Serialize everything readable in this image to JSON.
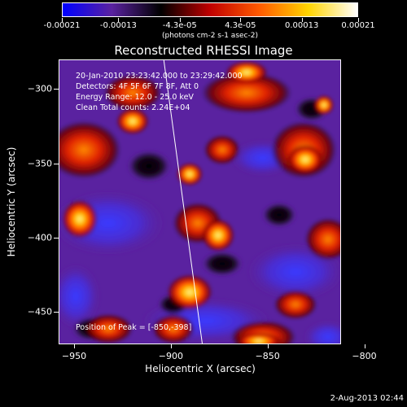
{
  "colorbar": {
    "tick_labels": [
      "-0.00021",
      "-0.00013",
      "-4.3e-05",
      "4.3e-05",
      "0.00013",
      "0.00021"
    ],
    "units": "(photons cm-2 s-1 asec-2)",
    "range": [
      -0.00021,
      0.00021
    ],
    "colors": [
      "#0000ff",
      "#5a22a0",
      "#000000",
      "#c00000",
      "#ff5a00",
      "#ffd400",
      "#ffffff"
    ]
  },
  "image": {
    "title": "Reconstructed RHESSI Image",
    "info_lines": [
      "20-Jan-2010 23:23:42.000 to 23:29:42.000",
      "Detectors: 4F 5F 6F 7F 8F, Att 0",
      "Energy Range: 12.0 - 25.0 keV",
      "Clean    Total counts: 2.24E+04"
    ],
    "peak_text": "Position of Peak = [-850,-398]",
    "peak_position": [
      -850,
      -398
    ]
  },
  "axes": {
    "xlabel": "Heliocentric X (arcsec)",
    "ylabel": "Heliocentric Y (arcsec)",
    "xlim": [
      -958,
      -812
    ],
    "ylim": [
      -472,
      -280
    ],
    "x_ticks": [
      -950,
      -900,
      -850,
      -800
    ],
    "y_ticks": [
      -300,
      -350,
      -400,
      -450
    ],
    "x_tick_labels": [
      "−950",
      "−900",
      "−850",
      "−800"
    ],
    "y_tick_labels": [
      "−300",
      "−350",
      "−400",
      "−450"
    ]
  },
  "footer": {
    "timestamp": "2-Aug-2013 02:44"
  }
}
